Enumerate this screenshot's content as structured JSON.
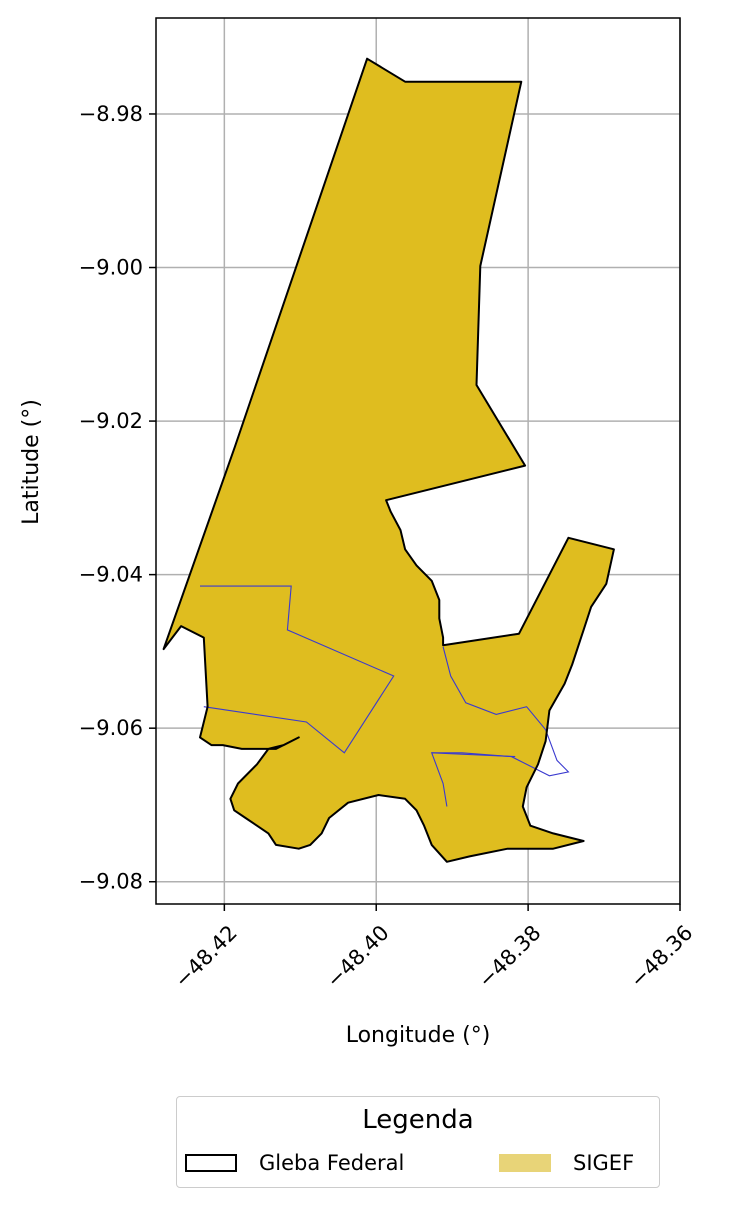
{
  "chart_data": {
    "type": "map",
    "xlabel": "Longitude (°)",
    "ylabel": "Latitude (°)",
    "xlim": [
      -48.429,
      -48.36
    ],
    "ylim": [
      -9.0829,
      -8.9675
    ],
    "xticks": [
      {
        "value": -48.42,
        "label": "−48.42"
      },
      {
        "value": -48.4,
        "label": "−48.40"
      },
      {
        "value": -48.38,
        "label": "−48.38"
      },
      {
        "value": -48.36,
        "label": "−48.36"
      }
    ],
    "yticks": [
      {
        "value": -8.98,
        "label": "−8.98"
      },
      {
        "value": -9.0,
        "label": "−9.00"
      },
      {
        "value": -9.02,
        "label": "−9.02"
      },
      {
        "value": -9.04,
        "label": "−9.04"
      },
      {
        "value": -9.06,
        "label": "−9.06"
      },
      {
        "value": -9.08,
        "label": "−9.08"
      }
    ],
    "grid": true,
    "legend": {
      "title": "Legenda",
      "placement": "bottom-center",
      "entries": [
        {
          "label": "Gleba Federal",
          "style": "outline",
          "color": "#000000"
        },
        {
          "label": "SIGEF",
          "style": "fill",
          "color": "#e8d478"
        }
      ]
    },
    "layers": [
      {
        "name": "SIGEF",
        "color": "#dfbd1f",
        "coordinates": [
          [
            -48.4012,
            -8.9728
          ],
          [
            -48.3962,
            -8.9758
          ],
          [
            -48.3809,
            -8.9758
          ],
          [
            -48.3863,
            -8.9998
          ],
          [
            -48.3868,
            -9.0153
          ],
          [
            -48.3804,
            -9.0258
          ],
          [
            -48.3987,
            -9.0303
          ],
          [
            -48.3981,
            -9.0318
          ],
          [
            -48.3968,
            -9.0342
          ],
          [
            -48.3962,
            -9.0367
          ],
          [
            -48.3947,
            -9.0388
          ],
          [
            -48.3927,
            -9.0408
          ],
          [
            -48.3917,
            -9.0433
          ],
          [
            -48.3917,
            -9.0457
          ],
          [
            -48.3912,
            -9.0482
          ],
          [
            -48.3912,
            -9.0492
          ],
          [
            -48.3812,
            -9.0477
          ],
          [
            -48.3747,
            -9.0352
          ],
          [
            -48.3687,
            -9.0367
          ],
          [
            -48.3697,
            -9.0412
          ],
          [
            -48.3717,
            -9.0442
          ],
          [
            -48.3727,
            -9.0472
          ],
          [
            -48.3742,
            -9.0517
          ],
          [
            -48.3752,
            -9.0542
          ],
          [
            -48.3772,
            -9.0577
          ],
          [
            -48.3777,
            -9.0617
          ],
          [
            -48.3787,
            -9.0647
          ],
          [
            -48.3802,
            -9.0677
          ],
          [
            -48.3807,
            -9.0702
          ],
          [
            -48.3797,
            -9.0727
          ],
          [
            -48.3767,
            -9.0737
          ],
          [
            -48.3727,
            -9.0747
          ],
          [
            -48.3767,
            -9.0757
          ],
          [
            -48.3827,
            -9.0757
          ],
          [
            -48.3877,
            -9.0767
          ],
          [
            -48.3907,
            -9.0774
          ],
          [
            -48.3927,
            -9.0752
          ],
          [
            -48.3937,
            -9.0727
          ],
          [
            -48.3947,
            -9.0707
          ],
          [
            -48.3962,
            -9.0692
          ],
          [
            -48.3997,
            -9.0687
          ],
          [
            -48.4037,
            -9.0697
          ],
          [
            -48.4062,
            -9.0717
          ],
          [
            -48.4072,
            -9.0737
          ],
          [
            -48.4087,
            -9.0752
          ],
          [
            -48.4102,
            -9.0757
          ],
          [
            -48.4132,
            -9.0752
          ],
          [
            -48.4142,
            -9.0737
          ],
          [
            -48.4157,
            -9.0727
          ],
          [
            -48.4172,
            -9.0717
          ],
          [
            -48.4187,
            -9.0707
          ],
          [
            -48.4192,
            -9.0692
          ],
          [
            -48.4182,
            -9.0672
          ],
          [
            -48.4157,
            -9.0647
          ],
          [
            -48.4142,
            -9.0627
          ],
          [
            -48.4122,
            -9.0622
          ],
          [
            -48.4102,
            -9.0612
          ],
          [
            -48.4132,
            -9.0627
          ],
          [
            -48.4177,
            -9.0627
          ],
          [
            -48.4202,
            -9.0622
          ],
          [
            -48.4217,
            -9.0622
          ],
          [
            -48.4232,
            -9.0612
          ],
          [
            -48.4222,
            -9.0572
          ],
          [
            -48.4227,
            -9.0482
          ],
          [
            -48.4257,
            -9.0467
          ],
          [
            -48.428,
            -9.0497
          ],
          [
            -48.4186,
            -9.0233
          ],
          [
            -48.4012,
            -8.9728
          ]
        ]
      },
      {
        "name": "Gleba Federal",
        "color": "#000000",
        "coordinates": [
          [
            -48.4012,
            -8.9728
          ],
          [
            -48.3962,
            -8.9758
          ],
          [
            -48.3809,
            -8.9758
          ],
          [
            -48.3863,
            -8.9998
          ],
          [
            -48.3868,
            -9.0153
          ],
          [
            -48.3804,
            -9.0258
          ],
          [
            -48.3987,
            -9.0303
          ],
          [
            -48.3981,
            -9.0318
          ],
          [
            -48.3968,
            -9.0342
          ],
          [
            -48.3962,
            -9.0367
          ],
          [
            -48.3947,
            -9.0388
          ],
          [
            -48.3927,
            -9.0408
          ],
          [
            -48.3917,
            -9.0433
          ],
          [
            -48.3917,
            -9.0457
          ],
          [
            -48.3912,
            -9.0482
          ],
          [
            -48.3912,
            -9.0492
          ],
          [
            -48.3812,
            -9.0477
          ],
          [
            -48.3747,
            -9.0352
          ],
          [
            -48.3687,
            -9.0367
          ],
          [
            -48.3697,
            -9.0412
          ],
          [
            -48.3717,
            -9.0442
          ],
          [
            -48.3727,
            -9.0472
          ],
          [
            -48.3742,
            -9.0517
          ],
          [
            -48.3752,
            -9.0542
          ],
          [
            -48.3772,
            -9.0577
          ],
          [
            -48.3777,
            -9.0617
          ],
          [
            -48.3787,
            -9.0647
          ],
          [
            -48.3802,
            -9.0677
          ],
          [
            -48.3807,
            -9.0702
          ],
          [
            -48.3797,
            -9.0727
          ],
          [
            -48.3767,
            -9.0737
          ],
          [
            -48.3727,
            -9.0747
          ],
          [
            -48.3767,
            -9.0757
          ],
          [
            -48.3827,
            -9.0757
          ],
          [
            -48.3877,
            -9.0767
          ],
          [
            -48.3907,
            -9.0774
          ],
          [
            -48.3927,
            -9.0752
          ],
          [
            -48.3937,
            -9.0727
          ],
          [
            -48.3947,
            -9.0707
          ],
          [
            -48.3962,
            -9.0692
          ],
          [
            -48.3997,
            -9.0687
          ],
          [
            -48.4037,
            -9.0697
          ],
          [
            -48.4062,
            -9.0717
          ],
          [
            -48.4072,
            -9.0737
          ],
          [
            -48.4087,
            -9.0752
          ],
          [
            -48.4102,
            -9.0757
          ],
          [
            -48.4132,
            -9.0752
          ],
          [
            -48.4142,
            -9.0737
          ],
          [
            -48.4157,
            -9.0727
          ],
          [
            -48.4172,
            -9.0717
          ],
          [
            -48.4187,
            -9.0707
          ],
          [
            -48.4192,
            -9.0692
          ],
          [
            -48.4182,
            -9.0672
          ],
          [
            -48.4157,
            -9.0647
          ],
          [
            -48.4142,
            -9.0627
          ],
          [
            -48.4122,
            -9.0622
          ],
          [
            -48.4102,
            -9.0612
          ],
          [
            -48.4132,
            -9.0627
          ],
          [
            -48.4177,
            -9.0627
          ],
          [
            -48.4202,
            -9.0622
          ],
          [
            -48.4217,
            -9.0622
          ],
          [
            -48.4232,
            -9.0612
          ],
          [
            -48.4222,
            -9.0572
          ],
          [
            -48.4227,
            -9.0482
          ],
          [
            -48.4257,
            -9.0467
          ],
          [
            -48.428,
            -9.0497
          ],
          [
            -48.4186,
            -9.0233
          ],
          [
            -48.4012,
            -8.9728
          ]
        ]
      }
    ],
    "internal_lines": [
      {
        "name": "parcel-boundary-west",
        "color": "#3a3acf",
        "coordinates": [
          [
            -48.4232,
            -9.0415
          ],
          [
            -48.4112,
            -9.0415
          ],
          [
            -48.4117,
            -9.0472
          ],
          [
            -48.3977,
            -9.0532
          ],
          [
            -48.4042,
            -9.0632
          ],
          [
            -48.4092,
            -9.0592
          ],
          [
            -48.4227,
            -9.0572
          ]
        ]
      },
      {
        "name": "parcel-boundary-east",
        "color": "#3a3acf",
        "coordinates": [
          [
            -48.3912,
            -9.0494
          ],
          [
            -48.3902,
            -9.0532
          ],
          [
            -48.3882,
            -9.0567
          ],
          [
            -48.3842,
            -9.0582
          ],
          [
            -48.3802,
            -9.0572
          ],
          [
            -48.3777,
            -9.0602
          ],
          [
            -48.3762,
            -9.0642
          ],
          [
            -48.3747,
            -9.0657
          ],
          [
            -48.3772,
            -9.0662
          ],
          [
            -48.3822,
            -9.0637
          ],
          [
            -48.3887,
            -9.0632
          ],
          [
            -48.3927,
            -9.0632
          ],
          [
            -48.3912,
            -9.0672
          ],
          [
            -48.3907,
            -9.0702
          ]
        ]
      },
      {
        "name": "parcel-boundary-south",
        "color": "#3a3acf",
        "coordinates": [
          [
            -48.3927,
            -9.0632
          ],
          [
            -48.3817,
            -9.0637
          ]
        ]
      }
    ]
  }
}
